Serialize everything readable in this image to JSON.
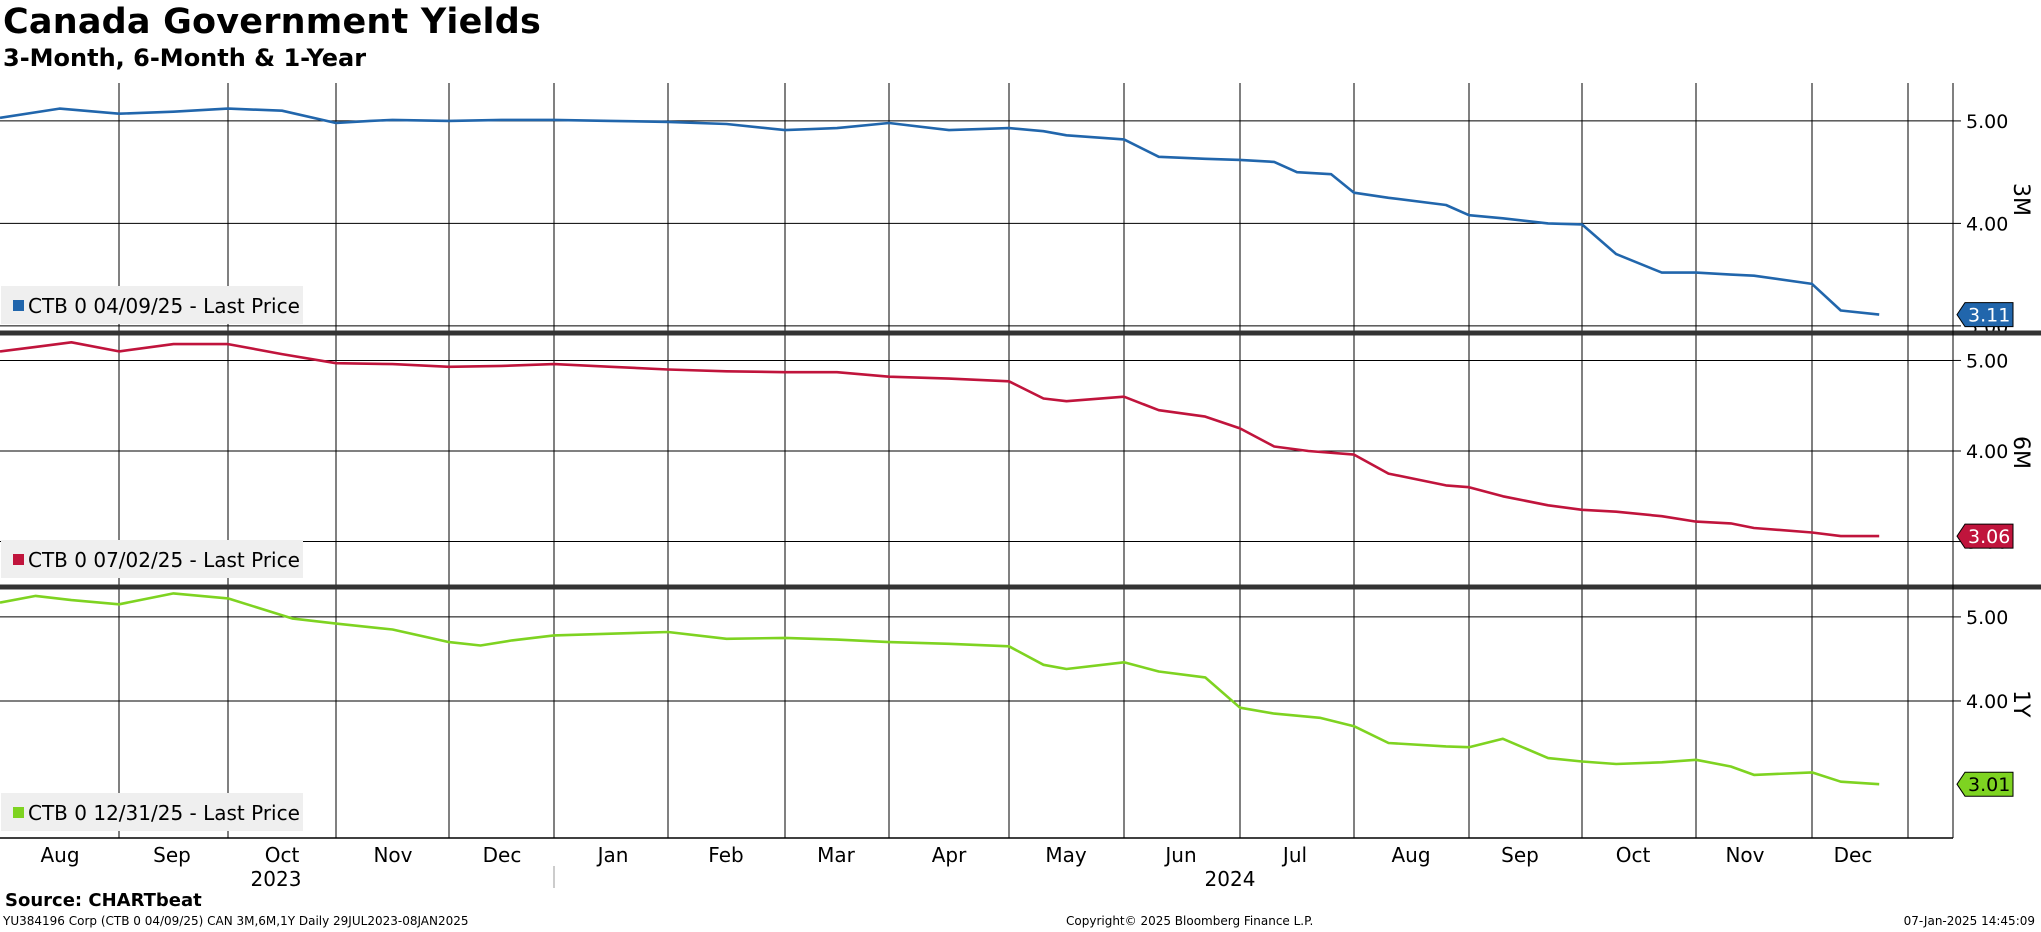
{
  "title": "Canada Government Yields",
  "subtitle": "3-Month, 6-Month & 1-Year",
  "source": "Source: CHARTbeat",
  "footer": {
    "left": "YU384196 Corp (CTB 0 04/09/25) CAN 3M,6M,1Y  Daily 29JUL2023-08JAN2025",
    "center": "Copyright© 2025 Bloomberg Finance L.P.",
    "right": "07-Jan-2025 14:45:09"
  },
  "chart_data": {
    "type": "line",
    "x_axis": {
      "month_labels": [
        "Aug",
        "Sep",
        "Oct",
        "Nov",
        "Dec",
        "Jan",
        "Feb",
        "Mar",
        "Apr",
        "May",
        "Jun",
        "Jul",
        "Aug",
        "Sep",
        "Oct",
        "Nov",
        "Dec"
      ],
      "year_labels": [
        "2023",
        "2024"
      ]
    },
    "grid": true,
    "panels": [
      {
        "axis_label": "3M",
        "legend": "CTB 0 04/09/25 - Last Price",
        "color": "#2166ac",
        "last_value": "3.11",
        "yticks": [
          "5.00",
          "4.00",
          "3.00"
        ],
        "ylim": [
          2.95,
          5.37
        ],
        "series": {
          "name": "CTB 0 04/09/25 - Last Price",
          "x_month_index": [
            0,
            0.5,
            1,
            1.5,
            2,
            2.5,
            3,
            3.3,
            3.5,
            4,
            4.5,
            5,
            5.5,
            6,
            6.5,
            7,
            7.5,
            8,
            8.5,
            9,
            9.3,
            9.5,
            10,
            10.3,
            10.7,
            11,
            11.3,
            11.5,
            11.8,
            12,
            12.3,
            12.8,
            13,
            13.3,
            13.7,
            14,
            14.3,
            14.7,
            15,
            15.3,
            15.5,
            16,
            16.3,
            16.7
          ],
          "values": [
            5.03,
            5.12,
            5.07,
            5.09,
            5.12,
            5.1,
            4.98,
            5.0,
            5.01,
            5.0,
            5.01,
            5.01,
            5.0,
            4.99,
            4.97,
            4.91,
            4.93,
            4.98,
            4.91,
            4.93,
            4.9,
            4.86,
            4.82,
            4.65,
            4.63,
            4.62,
            4.6,
            4.5,
            4.48,
            4.3,
            4.25,
            4.18,
            4.08,
            4.05,
            4.0,
            3.99,
            3.7,
            3.52,
            3.52,
            3.5,
            3.49,
            3.41,
            3.15,
            3.11
          ]
        }
      },
      {
        "axis_label": "6M",
        "legend": "CTB 0 07/02/25 - Last Price",
        "color": "#c0143c",
        "last_value": "3.06",
        "yticks": [
          "5.00",
          "4.00",
          "3.00"
        ],
        "ylim": [
          2.52,
          5.27
        ],
        "series": {
          "name": "CTB 0 07/02/25 - Last Price",
          "x_month_index": [
            0,
            0.3,
            0.6,
            1,
            1.5,
            2,
            2.5,
            3,
            3.5,
            4,
            4.5,
            5,
            5.5,
            6,
            6.5,
            7,
            7.5,
            8,
            8.5,
            9,
            9.3,
            9.5,
            10,
            10.3,
            10.7,
            11,
            11.3,
            11.6,
            12,
            12.3,
            12.8,
            13,
            13.3,
            13.7,
            14,
            14.3,
            14.7,
            15,
            15.3,
            15.5,
            16,
            16.3,
            16.7
          ],
          "values": [
            5.1,
            5.15,
            5.2,
            5.1,
            5.18,
            5.18,
            5.07,
            4.97,
            4.96,
            4.93,
            4.94,
            4.96,
            4.93,
            4.9,
            4.88,
            4.87,
            4.87,
            4.82,
            4.8,
            4.77,
            4.58,
            4.55,
            4.6,
            4.45,
            4.38,
            4.25,
            4.05,
            4.0,
            3.96,
            3.75,
            3.62,
            3.6,
            3.5,
            3.4,
            3.35,
            3.33,
            3.28,
            3.22,
            3.2,
            3.15,
            3.1,
            3.06,
            3.06
          ]
        }
      },
      {
        "axis_label": "1Y",
        "legend": "CTB 0 12/31/25 - Last Price",
        "color": "#7ed321",
        "last_value": "3.01",
        "yticks": [
          "5.00",
          "4.00"
        ],
        "ylim": [
          2.37,
          5.32
        ],
        "series": {
          "name": "CTB 0 12/31/25 - Last Price",
          "x_month_index": [
            0,
            0.3,
            0.6,
            1,
            1.5,
            2,
            2.3,
            2.6,
            3,
            3.5,
            4,
            4.3,
            4.6,
            5,
            5.5,
            6,
            6.5,
            7,
            7.5,
            8,
            8.5,
            9,
            9.3,
            9.5,
            10,
            10.3,
            10.7,
            11,
            11.3,
            11.7,
            12,
            12.3,
            12.8,
            13,
            13.3,
            13.7,
            14,
            14.3,
            14.7,
            15,
            15.3,
            15.5,
            16,
            16.3,
            16.7
          ],
          "values": [
            5.17,
            5.25,
            5.2,
            5.15,
            5.28,
            5.22,
            5.1,
            4.98,
            4.92,
            4.85,
            4.7,
            4.66,
            4.72,
            4.78,
            4.8,
            4.82,
            4.74,
            4.75,
            4.73,
            4.7,
            4.68,
            4.65,
            4.43,
            4.38,
            4.46,
            4.35,
            4.28,
            3.92,
            3.85,
            3.8,
            3.7,
            3.5,
            3.46,
            3.45,
            3.55,
            3.32,
            3.28,
            3.25,
            3.27,
            3.3,
            3.22,
            3.12,
            3.15,
            3.04,
            3.01
          ]
        }
      }
    ]
  }
}
